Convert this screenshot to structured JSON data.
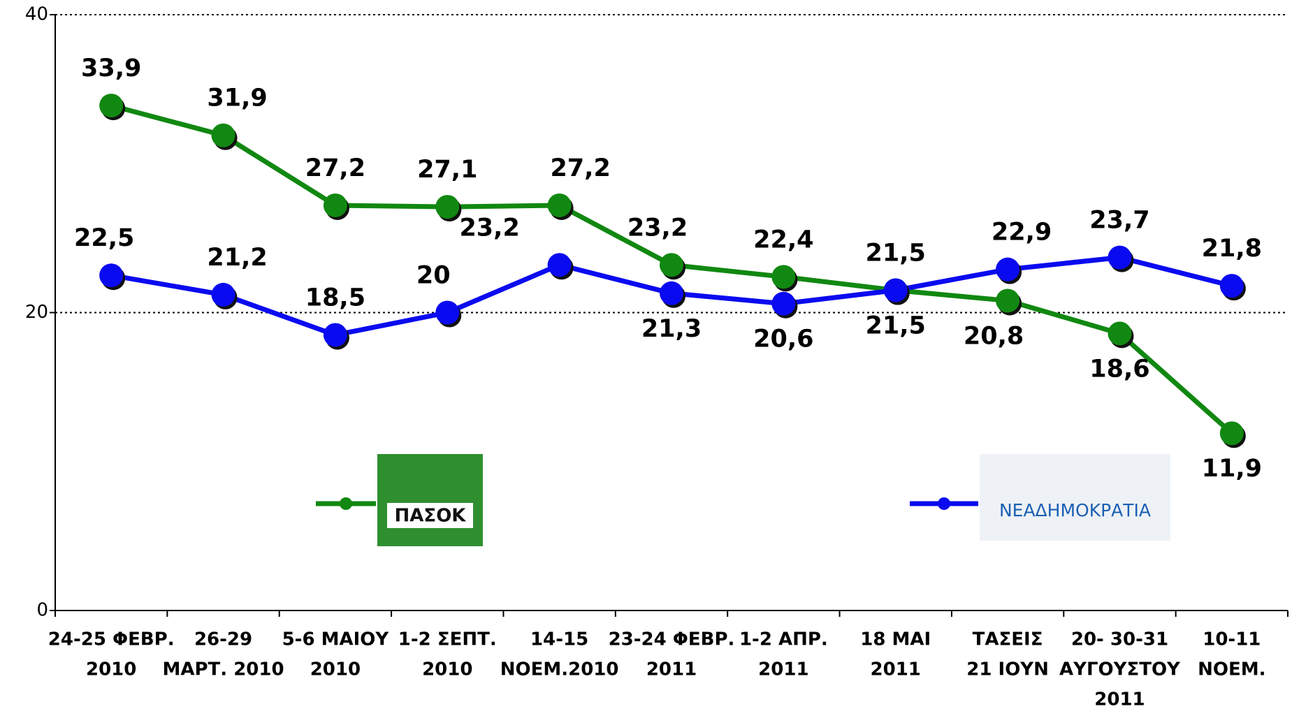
{
  "chart_data": {
    "type": "line",
    "categories": [
      [
        "24-25 ΦΕΒΡ.",
        "2010"
      ],
      [
        "26-29",
        "ΜΑΡΤ. 2010"
      ],
      [
        "5-6 ΜΑΙΟΥ",
        "2010"
      ],
      [
        "1-2 ΣΕΠΤ.",
        "2010"
      ],
      [
        "14-15",
        "ΝΟΕΜ.2010"
      ],
      [
        "23-24 ΦΕΒΡ.",
        "2011"
      ],
      [
        "1-2 ΑΠΡ.",
        "2011"
      ],
      [
        "18 ΜΑΙ",
        "2011"
      ],
      [
        "ΤΑΣΕΙΣ",
        "21 ΙΟΥΝ"
      ],
      [
        "20- 30-31",
        "ΑΥΓΟΥΣΤΟΥ",
        "2011"
      ],
      [
        "10-11",
        "ΝΟΕΜ."
      ]
    ],
    "series": [
      {
        "name": "ΠΑΣΟΚ",
        "color": "#118811",
        "values": [
          33.9,
          31.9,
          27.2,
          27.1,
          27.2,
          23.2,
          22.4,
          21.5,
          20.8,
          18.6,
          11.9
        ],
        "value_labels": [
          "33,9",
          "31,9",
          "27,2",
          "27,1",
          "27,2",
          "23,2",
          "22,4",
          "21,5",
          "20,8",
          "18,6",
          "11,9"
        ]
      },
      {
        "name": "ΝΕΑΔΗΜΟΚΡΑΤΙΑ",
        "color": "#0a0af0",
        "values": [
          22.5,
          21.2,
          18.5,
          20,
          23.2,
          21.3,
          20.6,
          21.5,
          22.9,
          23.7,
          21.8
        ],
        "value_labels": [
          "22,5",
          "21,2",
          "18,5",
          "20",
          "23,2",
          "21,3",
          "20,6",
          "21,5",
          "22,9",
          "23,7",
          "21,8"
        ]
      }
    ],
    "ylim": [
      0,
      40
    ],
    "yticks": [
      0,
      20,
      40
    ],
    "grid": true
  }
}
